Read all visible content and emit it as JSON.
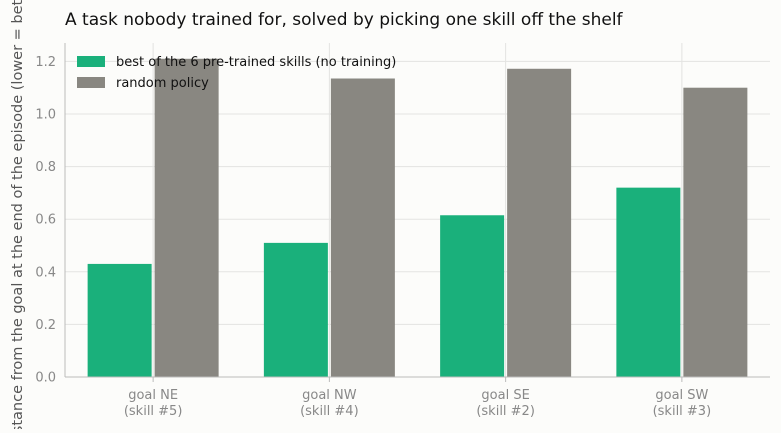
{
  "chart_data": {
    "type": "bar",
    "title": "A task nobody trained for, solved by picking one skill off the shelf",
    "xlabel": "",
    "ylabel": "distance from the goal at the end of the episode (lower = better)",
    "categories": [
      "goal NE\n(skill #5)",
      "goal NW\n(skill #4)",
      "goal SE\n(skill #2)",
      "goal SW\n(skill #3)"
    ],
    "series": [
      {
        "name": "best of the 6 pre-trained skills (no training)",
        "color": "#1ab07b",
        "values": [
          0.43,
          0.51,
          0.615,
          0.72
        ]
      },
      {
        "name": "random policy",
        "color": "#898781",
        "values": [
          1.21,
          1.135,
          1.172,
          1.1
        ]
      }
    ],
    "ylim": [
      0,
      1.27
    ],
    "yticks": [
      "0.0",
      "0.2",
      "0.4",
      "0.6",
      "0.8",
      "1.0",
      "1.2"
    ],
    "grid": true,
    "legend_position": "top-left"
  }
}
